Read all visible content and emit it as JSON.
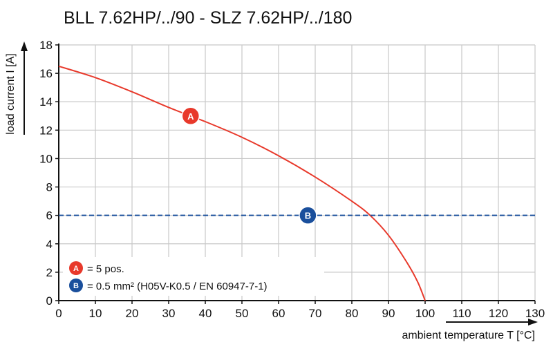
{
  "chart_data": {
    "type": "line",
    "title": "BLL 7.62HP/../90 - SLZ 7.62HP/../180",
    "xlabel": "ambient temperature T [°C]",
    "ylabel": "load current I [A]",
    "xlim": [
      0,
      130
    ],
    "ylim": [
      0,
      18
    ],
    "xticks": [
      0,
      10,
      20,
      30,
      40,
      50,
      60,
      70,
      80,
      90,
      100,
      110,
      120,
      130
    ],
    "yticks": [
      0,
      2,
      4,
      6,
      8,
      10,
      12,
      14,
      16,
      18
    ],
    "grid": true,
    "series": [
      {
        "name": "A",
        "color": "#e8392b",
        "style": "solid",
        "x": [
          0,
          10,
          20,
          30,
          40,
          50,
          60,
          70,
          80,
          85,
          90,
          95,
          98,
          100
        ],
        "y": [
          16.5,
          15.7,
          14.7,
          13.6,
          12.6,
          11.5,
          10.2,
          8.7,
          7.0,
          6.0,
          4.6,
          2.7,
          1.3,
          0
        ]
      },
      {
        "name": "B",
        "color": "#1a4f9c",
        "style": "dashed",
        "x": [
          0,
          130
        ],
        "y": [
          6,
          6
        ]
      }
    ],
    "markers": [
      {
        "label": "A",
        "x": 36,
        "y": 13,
        "color": "#e8392b"
      },
      {
        "label": "B",
        "x": 68,
        "y": 6,
        "color": "#1a4f9c"
      }
    ],
    "legend": {
      "position": "bottom-left",
      "entries": [
        {
          "badge": "A",
          "text": "= 5 pos.",
          "color": "#e8392b"
        },
        {
          "badge": "B",
          "text": "= 0.5 mm² (H05V-K0.5 / EN 60947-7-1)",
          "color": "#1a4f9c"
        }
      ]
    }
  }
}
